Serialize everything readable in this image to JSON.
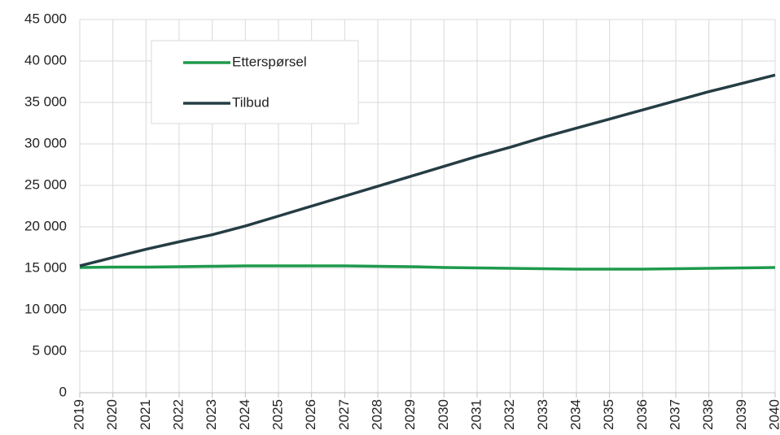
{
  "chart_data": {
    "type": "line",
    "categories": [
      "2019",
      "2020",
      "2021",
      "2022",
      "2023",
      "2024",
      "2025",
      "2026",
      "2027",
      "2028",
      "2029",
      "2030",
      "2031",
      "2032",
      "2033",
      "2034",
      "2035",
      "2036",
      "2037",
      "2038",
      "2039",
      "2040"
    ],
    "series": [
      {
        "name": "Etterspørsel",
        "color": "#1e9a4c",
        "values": [
          15100,
          15150,
          15150,
          15200,
          15250,
          15300,
          15300,
          15300,
          15300,
          15250,
          15200,
          15100,
          15050,
          15000,
          14950,
          14900,
          14900,
          14900,
          14950,
          15000,
          15050,
          15100
        ]
      },
      {
        "name": "Tilbud",
        "color": "#253d44",
        "values": [
          15300,
          16300,
          17300,
          18200,
          19050,
          20100,
          21300,
          22500,
          23700,
          24900,
          26100,
          27300,
          28500,
          29600,
          30800,
          31900,
          33000,
          34100,
          35200,
          36300,
          37300,
          38300
        ]
      }
    ],
    "ylim": [
      0,
      45000
    ],
    "yticks": [
      0,
      {
        "value": 5000,
        "label": "5 000"
      },
      {
        "value": 10000,
        "label": "10 000"
      },
      {
        "value": 15000,
        "label": "15 000"
      },
      {
        "value": 20000,
        "label": "20 000"
      },
      {
        "value": 25000,
        "label": "25 000"
      },
      {
        "value": 30000,
        "label": "30 000"
      },
      {
        "value": 35000,
        "label": "35 000"
      },
      {
        "value": 40000,
        "label": "40 000"
      },
      {
        "value": 45000,
        "label": "45 000"
      }
    ],
    "grid": true
  }
}
